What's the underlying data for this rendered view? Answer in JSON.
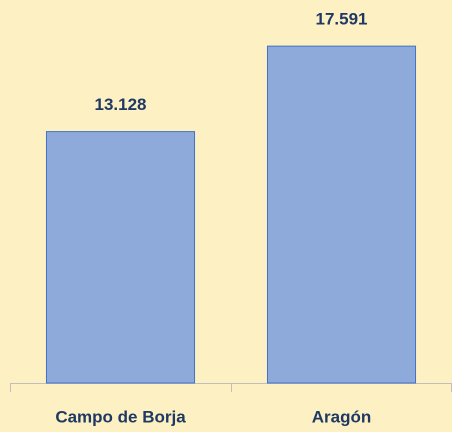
{
  "chart_data": {
    "type": "bar",
    "categories": [
      "Campo de Borja",
      "Aragón"
    ],
    "values": [
      13.128,
      17.591
    ],
    "color": "#8eaadb",
    "ylim": [
      0,
      20
    ]
  }
}
